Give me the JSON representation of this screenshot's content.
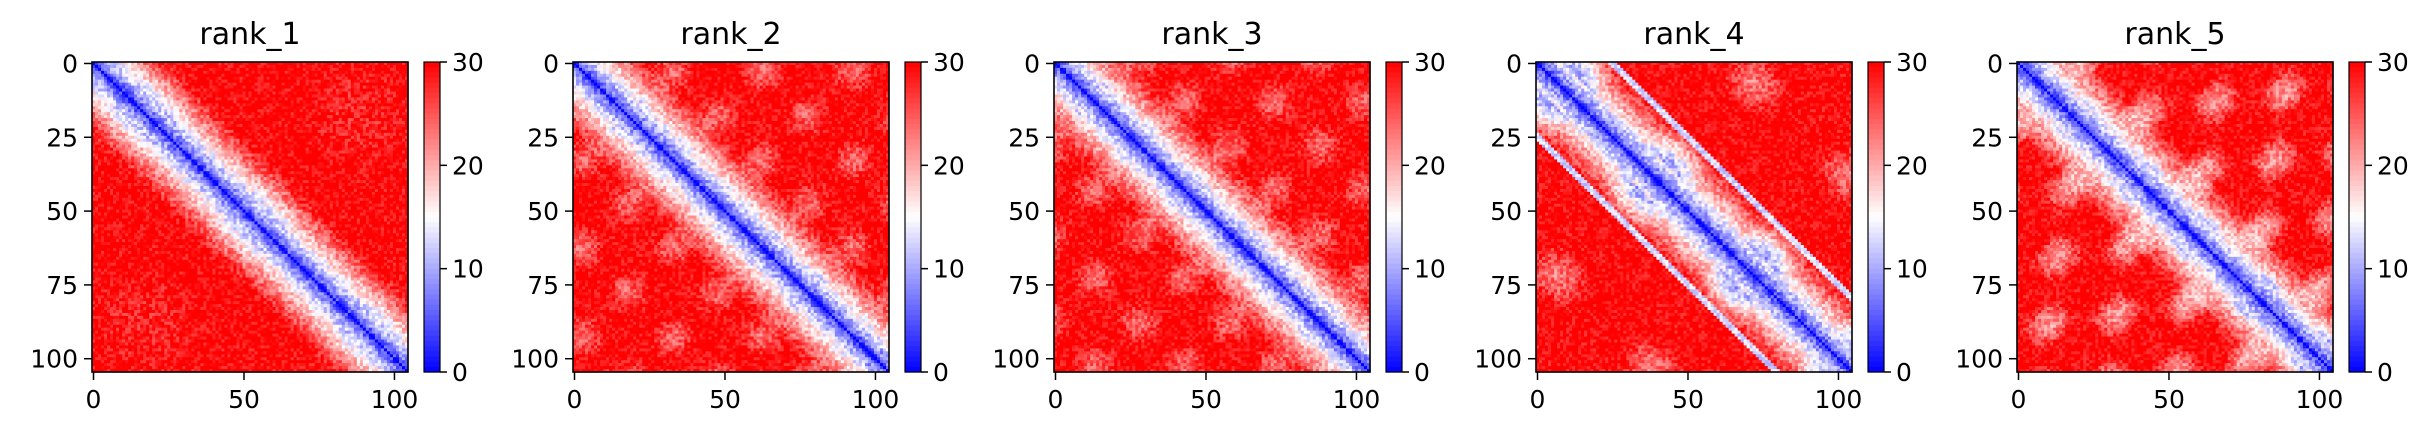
{
  "chart_data": {
    "type": "heatmap",
    "description": "Five distance-matrix heatmaps (105x105), diverging bwr colormap clipped to [0,30]",
    "matrix_size": 105,
    "colormap": {
      "low": "#0000ff",
      "mid": "#ffffff",
      "high": "#ff0000"
    },
    "color_range": [
      0,
      30
    ],
    "colorbar_ticks": [
      "0",
      "10",
      "20",
      "30"
    ],
    "x_ticks": [
      "0",
      "50",
      "100"
    ],
    "y_ticks": [
      "0",
      "25",
      "50",
      "75",
      "100"
    ],
    "panels": [
      {
        "title": "rank_1",
        "offdiag": [],
        "motif": 0
      },
      {
        "title": "rank_2",
        "offdiag": [],
        "motif": 1
      },
      {
        "title": "rank_3",
        "offdiag": [],
        "motif": 2
      },
      {
        "title": "rank_4",
        "offdiag": [
          {
            "start": 35,
            "end": 100,
            "offset": -25
          },
          {
            "start": 10,
            "end": 75,
            "offset": 25
          }
        ],
        "motif": 3
      },
      {
        "title": "rank_5",
        "offdiag": [],
        "motif": 4
      }
    ]
  }
}
